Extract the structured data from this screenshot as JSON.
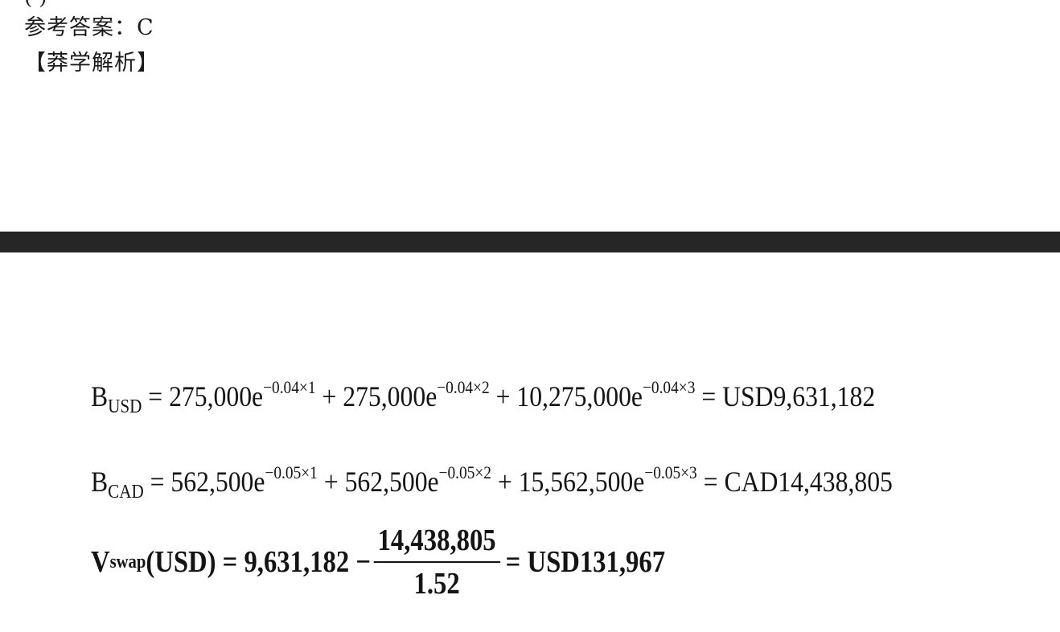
{
  "header": {
    "top_clip_text": "(   )",
    "answer_label": "参考答案：",
    "answer_value": "C",
    "analysis_heading": "【莽学解析】"
  },
  "formulas": {
    "b_usd": {
      "lhs": "B",
      "lhs_sub": "USD",
      "t1_coef": " = 275,000e",
      "t1_exp": "−0.04×1",
      "t2_coef": " + 275,000e",
      "t2_exp": "−0.04×2",
      "t3_coef": " + 10,275,000e",
      "t3_exp": "−0.04×3",
      "result": " = USD9,631,182"
    },
    "b_cad": {
      "lhs": "B",
      "lhs_sub": "CAD",
      "t1_coef": " = 562,500e",
      "t1_exp": "−0.05×1",
      "t2_coef": " + 562,500e",
      "t2_exp": "−0.05×2",
      "t3_coef": " + 15,562,500e",
      "t3_exp": "−0.05×3",
      "result": " = CAD14,438,805"
    },
    "v_swap": {
      "lhs": "V",
      "lhs_sub": "swap",
      "lhs_suffix": "(USD) = 9,631,182 −",
      "numerator": "14,438,805",
      "denominator": "1.52",
      "result": "= USD131,967"
    }
  }
}
